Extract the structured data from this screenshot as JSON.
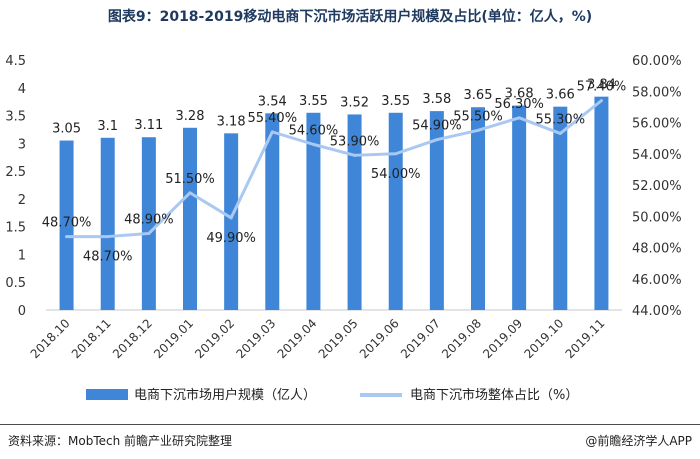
{
  "title": "图表9：2018-2019移动电商下沉市场活跃用户规模及占比(单位：亿人，%)",
  "source": "资料来源：MobTech 前瞻产业研究院整理",
  "credit": "@前瞻经济学人APP",
  "chart_data": {
    "type": "bar",
    "categories": [
      "2018.10",
      "2018.11",
      "2018.12",
      "2019.01",
      "2019.02",
      "2019.03",
      "2019.04",
      "2019.05",
      "2019.06",
      "2019.07",
      "2019.08",
      "2019.09",
      "2019.10",
      "2019.11"
    ],
    "series": [
      {
        "name": "电商下沉市场用户规模（亿人）",
        "type": "bar",
        "axis": "left",
        "color": "#3f86d8",
        "values": [
          3.05,
          3.1,
          3.11,
          3.28,
          3.18,
          3.54,
          3.55,
          3.52,
          3.55,
          3.58,
          3.65,
          3.68,
          3.66,
          3.84
        ],
        "labels": [
          "3.05",
          "3.1",
          "3.11",
          "3.28",
          "3.18",
          "3.54",
          "3.55",
          "3.52",
          "3.55",
          "3.58",
          "3.65",
          "3.68",
          "3.66",
          "3.84"
        ]
      },
      {
        "name": "电商下沉市场整体占比（%）",
        "type": "line",
        "axis": "right",
        "color": "#a9c9f2",
        "values": [
          48.7,
          48.7,
          48.9,
          51.5,
          49.9,
          55.4,
          54.6,
          53.9,
          54.0,
          54.9,
          55.5,
          56.3,
          55.3,
          57.4
        ],
        "labels": [
          "48.70%",
          "48.70%",
          "48.90%",
          "51.50%",
          "49.90%",
          "55.40%",
          "54.60%",
          "53.90%",
          "54.00%",
          "54.90%",
          "55.50%",
          "56.30%",
          "55.30%",
          "57.40%"
        ]
      }
    ],
    "y_left": {
      "min": 0,
      "max": 4.5,
      "ticks": [
        "0",
        "0.5",
        "1",
        "1.5",
        "2",
        "2.5",
        "3",
        "3.5",
        "4",
        "4.5"
      ]
    },
    "y_right": {
      "min": 44,
      "max": 60,
      "ticks": [
        "44.00%",
        "46.00%",
        "48.00%",
        "50.00%",
        "52.00%",
        "54.00%",
        "56.00%",
        "58.00%",
        "60.00%"
      ]
    },
    "grid": false,
    "legend_position": "bottom"
  }
}
